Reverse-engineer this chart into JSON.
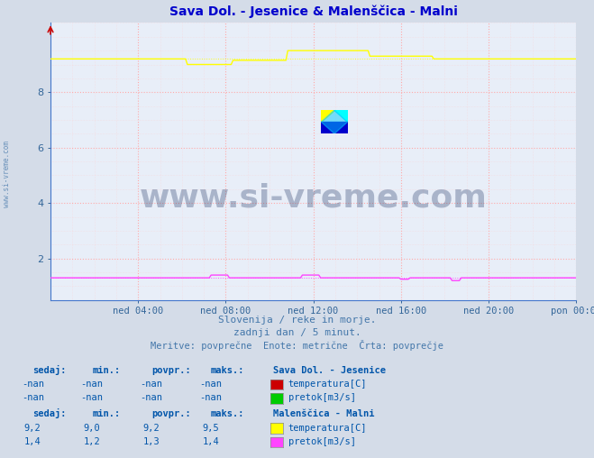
{
  "title": "Sava Dol. - Jesenice & Malenščica - Malni",
  "title_color": "#0000cc",
  "bg_color": "#d4dce8",
  "plot_bg_color": "#e8eef8",
  "grid_color_major": "#ffaaaa",
  "grid_color_minor": "#ffcccc",
  "xlabel_ticks": [
    "ned 04:00",
    "ned 08:00",
    "ned 12:00",
    "ned 16:00",
    "ned 20:00",
    "pon 00:00"
  ],
  "ylabel_ticks": [
    2,
    4,
    6,
    8
  ],
  "ylim": [
    0.5,
    10.5
  ],
  "xlim_min": 0,
  "xlim_max": 288,
  "x_tick_positions": [
    48,
    96,
    144,
    192,
    240,
    288
  ],
  "watermark_text": "www.si-vreme.com",
  "watermark_color": "#1a3060",
  "watermark_alpha": 0.3,
  "subtitle1": "Slovenija / reke in morje.",
  "subtitle2": "zadnji dan / 5 minut.",
  "subtitle3": "Meritve: povprečne  Enote: metrične  Črta: povprečje",
  "subtitle_color": "#4477aa",
  "left_label": "www.si-vreme.com",
  "yellow_line_color": "#ffff00",
  "magenta_line_color": "#ff44ff",
  "axis_spine_color": "#4477cc",
  "tick_color": "#336699",
  "legend_section1_title": "Sava Dol. - Jesenice",
  "legend_section1_rows": [
    {
      "sedaj": "-nan",
      "min": "-nan",
      "povpr": "-nan",
      "maks": "-nan",
      "label": "temperatura[C]",
      "color": "#cc0000"
    },
    {
      "sedaj": "-nan",
      "min": "-nan",
      "povpr": "-nan",
      "maks": "-nan",
      "label": "pretok[m3/s]",
      "color": "#00cc00"
    }
  ],
  "legend_section2_title": "Malenščica - Malni",
  "legend_section2_rows": [
    {
      "sedaj": "9,2",
      "min": "9,0",
      "povpr": "9,2",
      "maks": "9,5",
      "label": "temperatura[C]",
      "color": "#ffff00"
    },
    {
      "sedaj": "1,4",
      "min": "1,2",
      "povpr": "1,3",
      "maks": "1,4",
      "label": "pretok[m3/s]",
      "color": "#ff44ff"
    }
  ],
  "fig_width": 6.59,
  "fig_height": 5.08,
  "dpi": 100
}
